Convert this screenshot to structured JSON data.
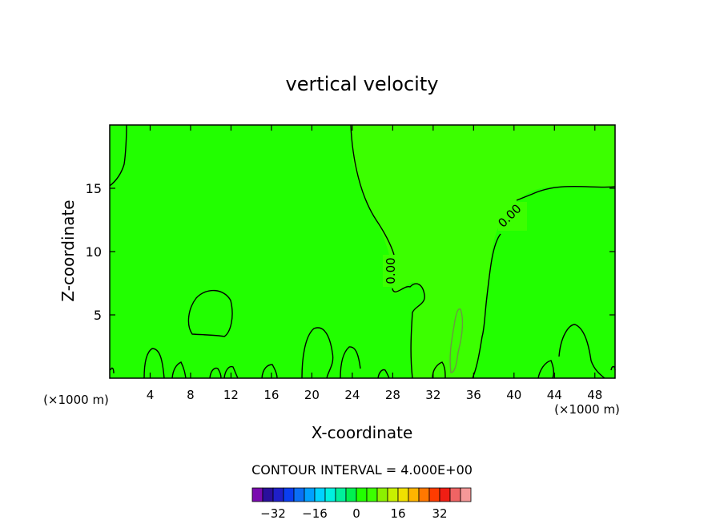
{
  "chart_data": {
    "type": "contour",
    "title": "vertical velocity",
    "xlabel": "X-coordinate",
    "ylabel": "Z-coordinate",
    "x_unit_left": "(×1000 m)",
    "x_unit_right": "(×1000 m)",
    "xlim": [
      0,
      50
    ],
    "ylim": [
      0,
      20
    ],
    "x_ticks": [
      4,
      8,
      12,
      16,
      20,
      24,
      28,
      32,
      36,
      40,
      44,
      48
    ],
    "y_ticks": [
      5,
      10,
      15
    ],
    "contour_labels": [
      "0.00",
      "0.00"
    ],
    "contour_interval_text": "CONTOUR INTERVAL = 4.000E+00",
    "colorbar": {
      "ticks": [
        -32,
        -16,
        0,
        16,
        32
      ],
      "tick_labels": [
        "−32",
        "−16",
        "0",
        "16",
        "32"
      ],
      "colors": [
        "#7a0bb0",
        "#2a0f9c",
        "#1f1fc8",
        "#0a3ef0",
        "#0a6ff5",
        "#00a0ff",
        "#00d2ff",
        "#00f0e0",
        "#00f09c",
        "#00f050",
        "#22ff00",
        "#3cff00",
        "#8cf000",
        "#c8f000",
        "#f0e000",
        "#ffb400",
        "#ff7800",
        "#ff3c00",
        "#f01e14",
        "#f06464",
        "#f59898"
      ]
    },
    "field_colors": {
      "background": "#22ff00",
      "positive_region": "#3cff00"
    }
  }
}
